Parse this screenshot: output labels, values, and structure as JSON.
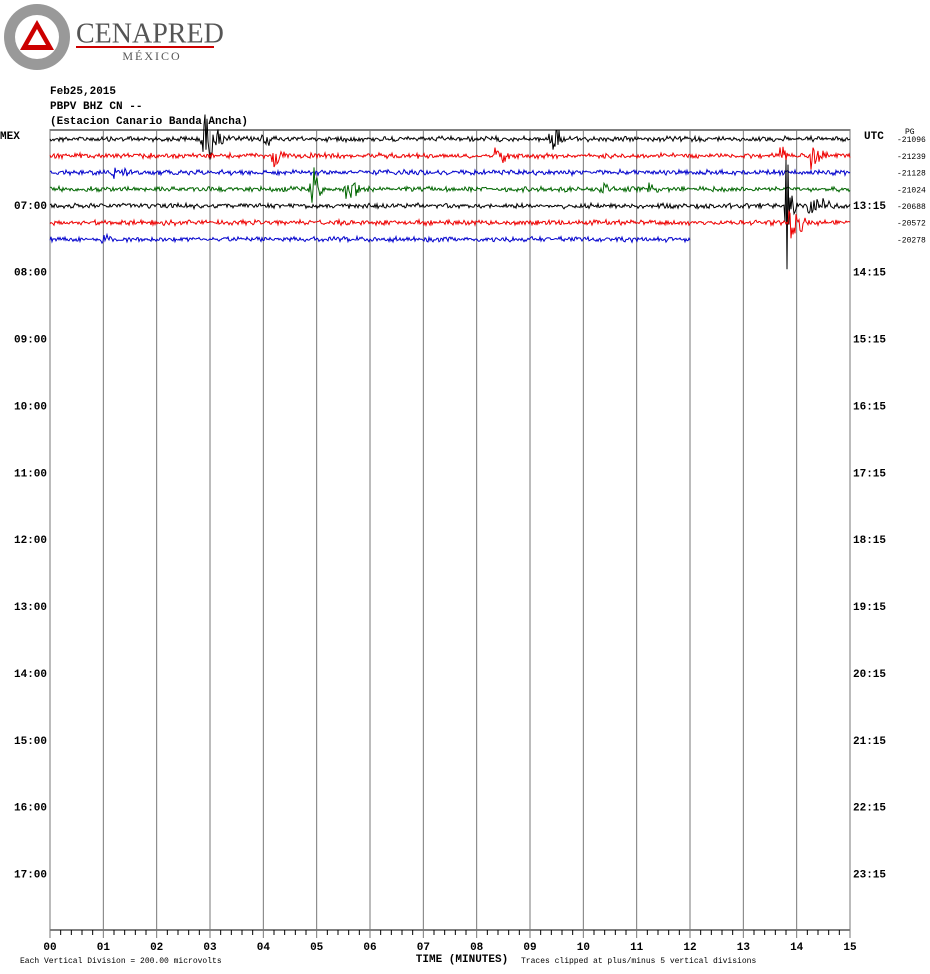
{
  "header": {
    "logo_name": "CENAPRED",
    "logo_country": "MÉXICO",
    "date": "Feb25,2015",
    "station": "PBPV BHZ CN --",
    "station_name": "(Estacion Canario Banda Ancha)"
  },
  "left_axis": {
    "title": "MEX",
    "labels": [
      "07:00",
      "08:00",
      "09:00",
      "10:00",
      "11:00",
      "12:00",
      "13:00",
      "14:00",
      "15:00",
      "16:00",
      "17:00"
    ]
  },
  "right_axis": {
    "title": "UTC",
    "labels": [
      "13:15",
      "14:15",
      "15:15",
      "16:15",
      "17:15",
      "18:15",
      "19:15",
      "20:15",
      "21:15",
      "22:15",
      "23:15"
    ],
    "unit": "PG"
  },
  "traces": [
    {
      "color": "#000000",
      "offset": "-21096",
      "end_minute": 15
    },
    {
      "color": "#ee0000",
      "offset": "-21239",
      "end_minute": 15
    },
    {
      "color": "#0000cc",
      "offset": "-21128",
      "end_minute": 15
    },
    {
      "color": "#006600",
      "offset": "-21024",
      "end_minute": 15
    },
    {
      "color": "#000000",
      "offset": "-20688",
      "end_minute": 15
    },
    {
      "color": "#ee0000",
      "offset": "-20572",
      "end_minute": 15
    },
    {
      "color": "#0000cc",
      "offset": "-20278",
      "end_minute": 12
    }
  ],
  "x_axis": {
    "title": "TIME (MINUTES)",
    "ticks": [
      {
        "value": 0,
        "label": "00"
      },
      {
        "value": 1,
        "label": "01"
      },
      {
        "value": 2,
        "label": "02"
      },
      {
        "value": 3,
        "label": "03"
      },
      {
        "value": 4,
        "label": "04"
      },
      {
        "value": 5,
        "label": "05"
      },
      {
        "value": 6,
        "label": "06"
      },
      {
        "value": 7,
        "label": "07"
      },
      {
        "value": 8,
        "label": "08"
      },
      {
        "value": 9,
        "label": "09"
      },
      {
        "value": 10,
        "label": "10"
      },
      {
        "value": 11,
        "label": "11"
      },
      {
        "value": 12,
        "label": "12"
      },
      {
        "value": 13,
        "label": "13"
      },
      {
        "value": 14,
        "label": "14"
      },
      {
        "value": 15,
        "label": "15"
      }
    ]
  },
  "footer": {
    "scale": "Each Vertical Division =  200.00 microvolts",
    "clip": "Traces clipped at plus/minus 5 vertical divisions"
  }
}
